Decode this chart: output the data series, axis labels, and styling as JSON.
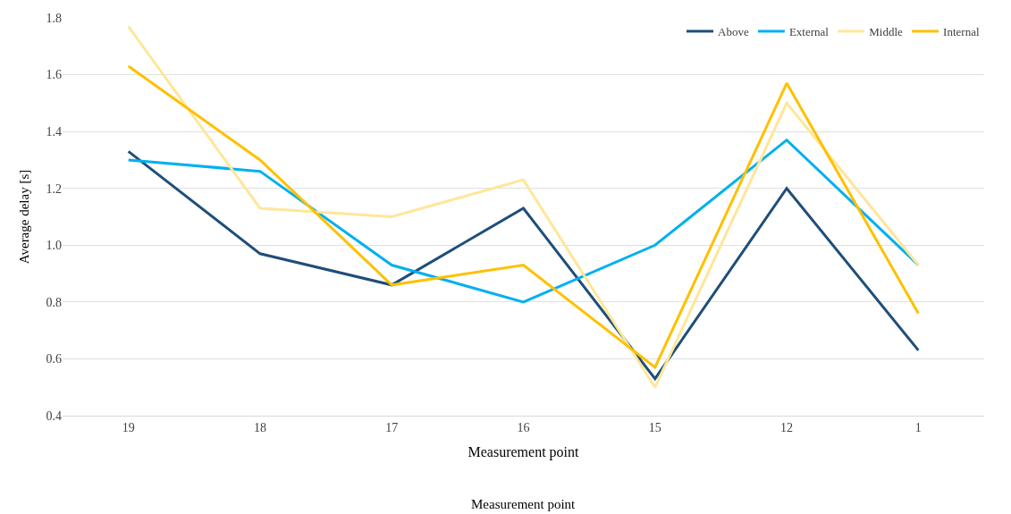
{
  "chart_data": {
    "type": "line",
    "xlabel": "Measurement point",
    "ylabel": "Average delay [s]",
    "categories": [
      "19",
      "18",
      "17",
      "16",
      "15",
      "12",
      "1"
    ],
    "series": [
      {
        "name": "Above",
        "color": "#1f4e79",
        "values": [
          1.33,
          0.97,
          0.86,
          1.13,
          0.53,
          1.2,
          0.63
        ]
      },
      {
        "name": "External",
        "color": "#00b0f0",
        "values": [
          1.3,
          1.26,
          0.93,
          0.8,
          1.0,
          1.37,
          0.93
        ]
      },
      {
        "name": "Middle",
        "color": "#ffe699",
        "values": [
          1.77,
          1.13,
          1.1,
          1.23,
          0.5,
          1.5,
          0.93
        ]
      },
      {
        "name": "Internal",
        "color": "#ffc000",
        "values": [
          1.63,
          1.3,
          0.86,
          0.93,
          0.57,
          1.57,
          0.76
        ]
      }
    ],
    "ylim": [
      0.4,
      1.8
    ],
    "yticks": [
      0.4,
      0.6,
      0.8,
      {
        "value": 1.0,
        "label": "1.0"
      },
      1.2,
      1.4,
      1.6,
      1.8
    ],
    "grid": "y",
    "legend": "top right",
    "marker": "none",
    "line_style": "solid",
    "annotations": [
      "Measurement point"
    ]
  }
}
